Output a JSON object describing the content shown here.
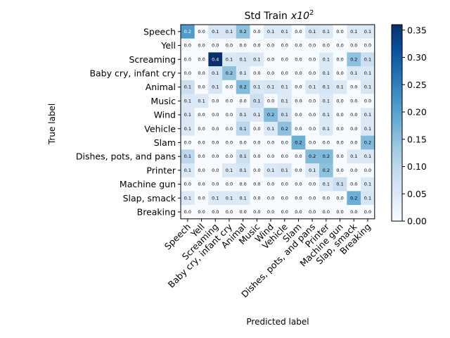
{
  "chart_data": {
    "type": "heatmap",
    "title_main": "Std Train",
    "title_var": "x10",
    "title_exp": "2",
    "xlabel": "Predicted label",
    "ylabel": "True label",
    "labels": [
      "Speech",
      "Yell",
      "Screaming",
      "Baby cry, infant cry",
      "Animal",
      "Music",
      "Wind",
      "Vehicle",
      "Slam",
      "Dishes, pots, and pans",
      "Printer",
      "Machine gun",
      "Slap, smack",
      "Breaking"
    ],
    "values": [
      [
        0.21,
        0.0,
        0.06,
        0.06,
        0.15,
        0.0,
        0.05,
        0.05,
        0.0,
        0.06,
        0.05,
        0.0,
        0.05,
        0.05
      ],
      [
        0.0,
        0.0,
        0.0,
        0.0,
        0.0,
        0.0,
        0.0,
        0.0,
        0.0,
        0.0,
        0.0,
        0.0,
        0.0,
        0.0
      ],
      [
        0.0,
        0.0,
        0.36,
        0.05,
        0.06,
        0.05,
        0.0,
        0.0,
        0.0,
        0.0,
        0.05,
        0.0,
        0.15,
        0.08
      ],
      [
        0.0,
        0.0,
        0.06,
        0.15,
        0.05,
        0.0,
        0.0,
        0.0,
        0.0,
        0.0,
        0.05,
        0.0,
        0.05,
        0.05
      ],
      [
        0.08,
        0.0,
        0.06,
        0.0,
        0.16,
        0.05,
        0.06,
        0.05,
        0.0,
        0.05,
        0.06,
        0.05,
        0.0,
        0.06
      ],
      [
        0.05,
        0.05,
        0.0,
        0.0,
        0.0,
        0.08,
        0.0,
        0.05,
        0.0,
        0.0,
        0.05,
        0.0,
        0.0,
        0.0
      ],
      [
        0.05,
        0.0,
        0.0,
        0.0,
        0.06,
        0.05,
        0.16,
        0.08,
        0.0,
        0.0,
        0.05,
        0.0,
        0.0,
        0.05
      ],
      [
        0.05,
        0.0,
        0.0,
        0.0,
        0.1,
        0.0,
        0.05,
        0.15,
        0.0,
        0.0,
        0.05,
        0.0,
        0.0,
        0.05
      ],
      [
        0.0,
        0.0,
        0.0,
        0.0,
        0.0,
        0.0,
        0.0,
        0.0,
        0.18,
        0.0,
        0.0,
        0.0,
        0.0,
        0.16
      ],
      [
        0.1,
        0.0,
        0.0,
        0.0,
        0.08,
        0.0,
        0.0,
        0.0,
        0.0,
        0.16,
        0.16,
        0.0,
        0.05,
        0.05
      ],
      [
        0.05,
        0.0,
        0.0,
        0.05,
        0.06,
        0.0,
        0.05,
        0.06,
        0.0,
        0.05,
        0.15,
        0.0,
        0.0,
        0.0
      ],
      [
        0.0,
        0.0,
        0.0,
        0.0,
        0.0,
        0.0,
        0.0,
        0.0,
        0.0,
        0.0,
        0.05,
        0.08,
        0.0,
        0.05
      ],
      [
        0.05,
        0.0,
        0.05,
        0.05,
        0.05,
        0.0,
        0.0,
        0.0,
        0.0,
        0.0,
        0.0,
        0.0,
        0.18,
        0.06
      ],
      [
        0.0,
        0.0,
        0.0,
        0.0,
        0.0,
        0.0,
        0.0,
        0.0,
        0.0,
        0.0,
        0.0,
        0.0,
        0.0,
        0.0
      ]
    ],
    "cell_labels": [
      [
        "0.2",
        "0.0",
        "0.1",
        "0.1",
        "0.2",
        "0.0",
        "0.1",
        "0.1",
        "0.0",
        "0.1",
        "0.1",
        "0.0",
        "0.1",
        "0.1"
      ],
      [
        "0.0",
        "0.0",
        "0.0",
        "0.0",
        "0.0",
        "0.0",
        "0.0",
        "0.0",
        "0.0",
        "0.0",
        "0.0",
        "0.0",
        "0.0",
        "0.0"
      ],
      [
        "0.0",
        "0.0",
        "0.4",
        "0.1",
        "0.1",
        "0.1",
        "0.0",
        "0.0",
        "0.0",
        "0.0",
        "0.1",
        "0.0",
        "0.2",
        "0.1"
      ],
      [
        "0.0",
        "0.0",
        "0.1",
        "0.2",
        "0.1",
        "0.0",
        "0.0",
        "0.0",
        "0.0",
        "0.0",
        "0.1",
        "0.0",
        "0.1",
        "0.1"
      ],
      [
        "0.1",
        "0.0",
        "0.1",
        "0.0",
        "0.2",
        "0.1",
        "0.1",
        "0.1",
        "0.0",
        "0.1",
        "0.1",
        "0.1",
        "0.0",
        "0.1"
      ],
      [
        "0.1",
        "0.1",
        "0.0",
        "0.0",
        "0.0",
        "0.1",
        "0.0",
        "0.1",
        "0.0",
        "0.0",
        "0.1",
        "0.0",
        "0.0",
        "0.0"
      ],
      [
        "0.1",
        "0.0",
        "0.0",
        "0.0",
        "0.1",
        "0.1",
        "0.2",
        "0.1",
        "0.0",
        "0.0",
        "0.1",
        "0.0",
        "0.0",
        "0.1"
      ],
      [
        "0.1",
        "0.0",
        "0.0",
        "0.0",
        "0.1",
        "0.0",
        "0.1",
        "0.2",
        "0.0",
        "0.0",
        "0.1",
        "0.0",
        "0.0",
        "0.1"
      ],
      [
        "0.0",
        "0.0",
        "0.0",
        "0.0",
        "0.0",
        "0.0",
        "0.0",
        "0.0",
        "0.2",
        "0.0",
        "0.0",
        "0.0",
        "0.0",
        "0.2"
      ],
      [
        "0.1",
        "0.0",
        "0.0",
        "0.0",
        "0.1",
        "0.0",
        "0.0",
        "0.0",
        "0.0",
        "0.2",
        "0.2",
        "0.0",
        "0.1",
        "0.1"
      ],
      [
        "0.1",
        "0.0",
        "0.0",
        "0.1",
        "0.1",
        "0.0",
        "0.1",
        "0.1",
        "0.0",
        "0.1",
        "0.2",
        "0.0",
        "0.0",
        "0.0"
      ],
      [
        "0.0",
        "0.0",
        "0.0",
        "0.0",
        "0.0",
        "0.0",
        "0.0",
        "0.0",
        "0.0",
        "0.0",
        "0.1",
        "0.1",
        "0.0",
        "0.1"
      ],
      [
        "0.1",
        "0.0",
        "0.1",
        "0.1",
        "0.1",
        "0.0",
        "0.0",
        "0.0",
        "0.0",
        "0.0",
        "0.0",
        "0.0",
        "0.2",
        "0.1"
      ],
      [
        "0.0",
        "0.0",
        "0.0",
        "0.0",
        "0.0",
        "0.0",
        "0.0",
        "0.0",
        "0.0",
        "0.0",
        "0.0",
        "0.0",
        "0.0",
        "0.0"
      ]
    ],
    "colorbar": {
      "min": 0.0,
      "max": 0.36,
      "ticks": [
        0.0,
        0.05,
        0.1,
        0.15,
        0.2,
        0.25,
        0.3,
        0.35
      ],
      "tick_labels": [
        "0.00",
        "0.05",
        "0.10",
        "0.15",
        "0.20",
        "0.25",
        "0.30",
        "0.35"
      ],
      "colormap": "Blues"
    },
    "colors": {
      "low": "#f7fbff",
      "high": "#08306b"
    },
    "grid": false
  }
}
